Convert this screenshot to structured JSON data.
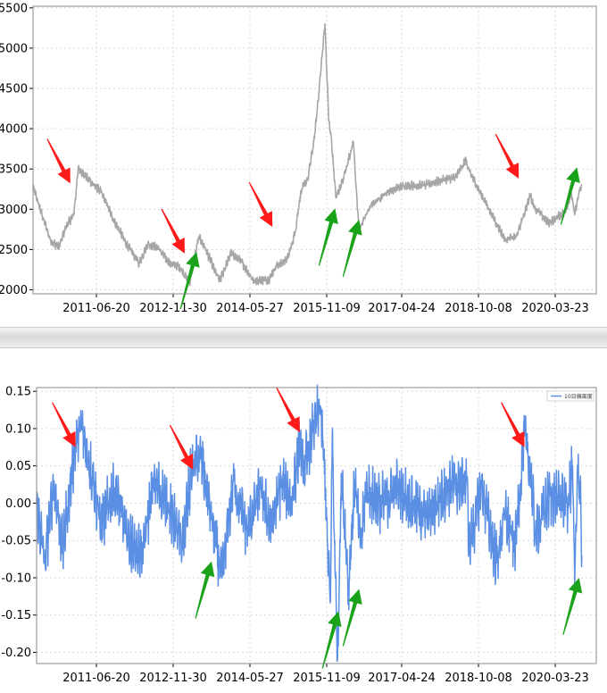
{
  "chart_data": [
    {
      "type": "line",
      "title": "",
      "xlabel": "",
      "ylabel": "",
      "x_tick_labels": [
        "2011-06-20",
        "2012-11-30",
        "2014-05-27",
        "2015-11-09",
        "2017-04-24",
        "2018-10-08",
        "2020-03-23"
      ],
      "y_tick_labels": [
        "2000",
        "2500",
        "3000",
        "3500",
        "4000",
        "4500",
        "5000",
        "5500"
      ],
      "y_ticks": [
        2000,
        2500,
        3000,
        3500,
        4000,
        4500,
        5000,
        5500
      ],
      "ylim": [
        1950,
        5520
      ],
      "xlim": [
        "2010-01-04",
        "2020-06-30"
      ],
      "grid": true,
      "line_color": "#a6a6a6",
      "series": [
        {
          "x": [
            "2010-01-04",
            "2010-03-01",
            "2010-05-03",
            "2010-07-01",
            "2010-08-16",
            "2010-10-08",
            "2010-11-08",
            "2011-01-25",
            "2011-04-15",
            "2011-07-01",
            "2011-09-28",
            "2011-12-27",
            "2012-02-24",
            "2012-05-04",
            "2012-07-20",
            "2012-09-26",
            "2012-12-04",
            "2013-02-04",
            "2013-03-15",
            "2013-06-25",
            "2013-09-11",
            "2013-11-15",
            "2014-02-14",
            "2014-05-27",
            "2014-07-15",
            "2014-09-30",
            "2014-11-20",
            "2014-12-31",
            "2015-02-16",
            "2015-04-01",
            "2015-05-01",
            "2015-06-12",
            "2015-07-08",
            "2015-07-24",
            "2015-08-26",
            "2015-10-15",
            "2015-12-22",
            "2016-01-28",
            "2016-04-20",
            "2016-08-15",
            "2016-11-29",
            "2017-04-24",
            "2017-08-15",
            "2017-11-13",
            "2018-01-26",
            "2018-02-09",
            "2018-05-21",
            "2018-08-20",
            "2018-10-18",
            "2019-01-04",
            "2019-04-08",
            "2019-05-09",
            "2019-08-09",
            "2019-11-29",
            "2020-01-13",
            "2020-02-03",
            "2020-03-05",
            "2020-03-23"
          ],
          "y": [
            3280,
            2960,
            2610,
            2530,
            2790,
            2930,
            3510,
            3350,
            3210,
            2890,
            2580,
            2330,
            2570,
            2520,
            2330,
            2290,
            2080,
            2660,
            2530,
            2110,
            2450,
            2360,
            2110,
            2130,
            2290,
            2380,
            2700,
            3230,
            3380,
            3880,
            4440,
            5300,
            4100,
            3900,
            3140,
            3380,
            3840,
            2750,
            3050,
            3220,
            3290,
            3300,
            3360,
            3390,
            3620,
            3500,
            3150,
            2830,
            2620,
            2660,
            3170,
            3020,
            2830,
            2960,
            3200,
            2930,
            3200,
            3310
          ]
        }
      ],
      "arrows": [
        {
          "type": "down",
          "color": "#ff1a1a",
          "x": "2010-09-15",
          "y": 3320
        },
        {
          "type": "down",
          "color": "#ff1a1a",
          "x": "2012-11-01",
          "y": 2450
        },
        {
          "type": "up",
          "color": "#1aa31a",
          "x": "2013-01-20",
          "y": 2470
        },
        {
          "type": "down",
          "color": "#ff1a1a",
          "x": "2014-06-20",
          "y": 2780
        },
        {
          "type": "up",
          "color": "#1aa31a",
          "x": "2015-08-20",
          "y": 3010
        },
        {
          "type": "up",
          "color": "#1aa31a",
          "x": "2016-01-30",
          "y": 2870
        },
        {
          "type": "down",
          "color": "#ff1a1a",
          "x": "2019-01-20",
          "y": 3380
        },
        {
          "type": "up",
          "color": "#1aa31a",
          "x": "2020-02-20",
          "y": 3520
        }
      ]
    },
    {
      "type": "line",
      "title": "",
      "xlabel": "",
      "ylabel": "",
      "x_tick_labels": [
        "2011-06-20",
        "2012-11-30",
        "2014-05-27",
        "2015-11-09",
        "2017-04-24",
        "2018-10-08",
        "2020-03-23"
      ],
      "y_tick_labels": [
        "-0.20",
        "-0.15",
        "-0.10",
        "-0.05",
        "0.00",
        "0.05",
        "0.10",
        "0.15"
      ],
      "y_ticks": [
        -0.2,
        -0.15,
        -0.1,
        -0.05,
        0.0,
        0.05,
        0.1,
        0.15
      ],
      "ylim": [
        -0.215,
        0.155
      ],
      "xlim": [
        "2010-01-04",
        "2020-06-30"
      ],
      "grid": true,
      "legend_position": "top-right",
      "line_color": "#5b8fe3",
      "series": [
        {
          "name": "10日偏离度",
          "x": [
            "2010-01-04",
            "2010-03-01",
            "2010-05-03",
            "2010-07-01",
            "2010-09-28",
            "2010-11-08",
            "2011-01-25",
            "2011-03-20",
            "2011-06-20",
            "2011-09-28",
            "2011-12-27",
            "2012-03-15",
            "2012-06-20",
            "2012-09-26",
            "2012-12-04",
            "2013-02-04",
            "2013-04-15",
            "2013-06-25",
            "2013-09-11",
            "2013-12-20",
            "2014-03-10",
            "2014-05-27",
            "2014-08-10",
            "2014-10-15",
            "2014-12-10",
            "2015-01-05",
            "2015-03-10",
            "2015-05-01",
            "2015-06-05",
            "2015-06-20",
            "2015-07-08",
            "2015-07-20",
            "2015-08-10",
            "2015-08-26",
            "2015-09-20",
            "2015-11-09",
            "2015-12-22",
            "2016-01-28",
            "2016-03-10",
            "2016-06-15",
            "2016-10-10",
            "2017-04-24",
            "2017-09-12",
            "2018-01-26",
            "2018-02-09",
            "2018-05-10",
            "2018-08-20",
            "2018-10-11",
            "2018-12-20",
            "2019-02-25",
            "2019-04-08",
            "2019-05-09",
            "2019-08-20",
            "2019-12-20",
            "2020-01-20",
            "2020-02-03",
            "2020-02-24",
            "2020-03-12",
            "2020-03-23"
          ],
          "y": [
            0.0,
            -0.08,
            0.03,
            -0.06,
            0.08,
            0.1,
            0.03,
            -0.03,
            0.02,
            -0.05,
            -0.07,
            0.03,
            0.0,
            -0.06,
            0.05,
            0.06,
            -0.02,
            -0.1,
            0.03,
            -0.04,
            0.02,
            -0.03,
            0.03,
            0.0,
            0.08,
            0.04,
            0.1,
            0.13,
            0.02,
            -0.08,
            -0.13,
            0.09,
            -0.1,
            -0.21,
            0.04,
            -0.11,
            0.03,
            -0.06,
            0.02,
            0.0,
            0.02,
            -0.02,
            0.02,
            0.03,
            -0.06,
            0.02,
            -0.08,
            -0.01,
            -0.06,
            0.09,
            0.04,
            -0.04,
            0.01,
            0.0,
            0.05,
            -0.11,
            0.04,
            0.03,
            -0.07
          ]
        }
      ],
      "arrows": [
        {
          "type": "down",
          "color": "#ff1a1a",
          "x": "2010-09-28",
          "y": 0.075
        },
        {
          "type": "down",
          "color": "#ff1a1a",
          "x": "2012-12-10",
          "y": 0.045
        },
        {
          "type": "up",
          "color": "#1aa31a",
          "x": "2013-04-15",
          "y": -0.078
        },
        {
          "type": "down",
          "color": "#ff1a1a",
          "x": "2014-12-10",
          "y": 0.095
        },
        {
          "type": "up",
          "color": "#1aa31a",
          "x": "2015-09-01",
          "y": -0.145
        },
        {
          "type": "up",
          "color": "#1aa31a",
          "x": "2016-01-20",
          "y": -0.115
        },
        {
          "type": "down",
          "color": "#ff1a1a",
          "x": "2019-02-25",
          "y": 0.075
        },
        {
          "type": "up",
          "color": "#1aa31a",
          "x": "2020-03-05",
          "y": -0.1
        }
      ]
    }
  ]
}
